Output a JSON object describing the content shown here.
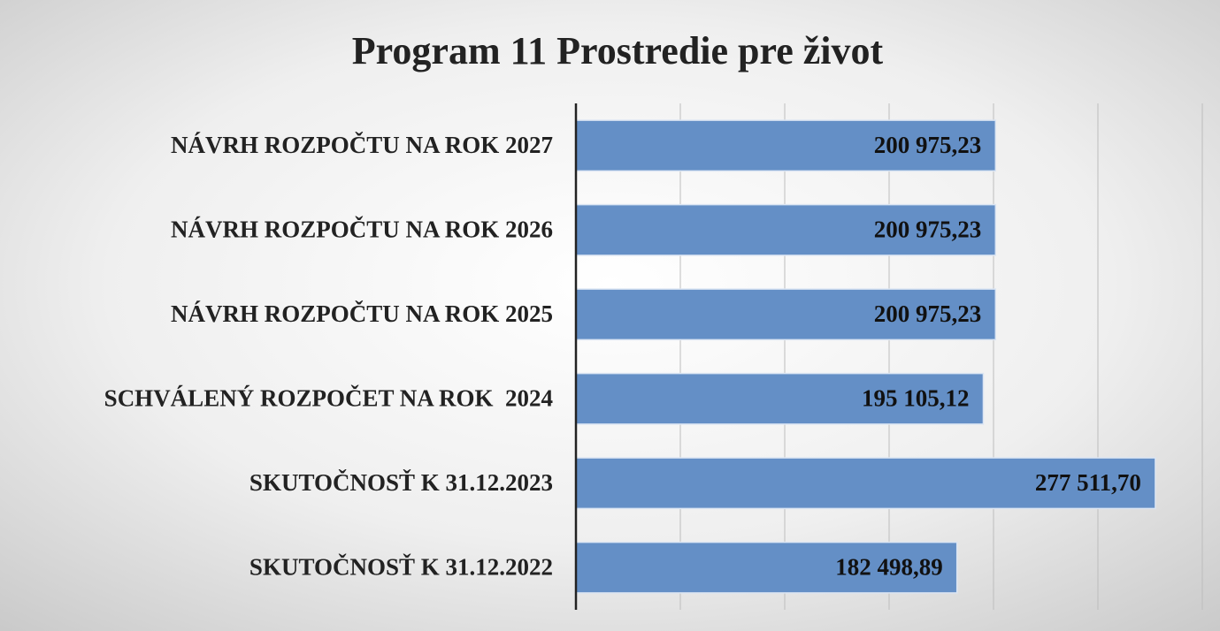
{
  "chart_data": {
    "type": "barh",
    "title": "Program 11 Prostredie pre život",
    "categories": [
      "NÁVRH ROZPOČTU NA ROK 2027",
      "NÁVRH ROZPOČTU NA ROK 2026",
      "NÁVRH ROZPOČTU NA ROK 2025",
      "SCHVÁLENÝ ROZPOČET NA ROK  2024",
      "SKUTOČNOSŤ K 31.12.2023",
      "SKUTOČNOSŤ K 31.12.2022"
    ],
    "values": [
      200975.23,
      200975.23,
      200975.23,
      195105.12,
      277511.7,
      182498.89
    ],
    "value_labels": [
      "200 975,23",
      "200 975,23",
      "200 975,23",
      "195 105,12",
      "277 511,70",
      "182 498,89"
    ],
    "color": "#648fc6",
    "xlim": [
      0,
      300000
    ],
    "xticks": [
      0,
      50000,
      100000,
      150000,
      200000,
      250000,
      300000
    ],
    "grid": true
  }
}
